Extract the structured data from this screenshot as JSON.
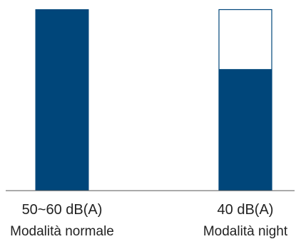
{
  "chart_data": {
    "type": "bar",
    "categories": [
      "Modalità normale",
      "Modalità night"
    ],
    "value_labels": [
      "50~60 dB(A)",
      "40 dB(A)"
    ],
    "series": [
      {
        "values": [
          1.0,
          0.67
        ]
      }
    ],
    "ylim": [
      0,
      1
    ],
    "grid": false,
    "legend": "none",
    "colors": {
      "bar_fill": "#00467a",
      "bar_outline": "#00467a",
      "empty_fill": "#ffffff",
      "axis": "#555555"
    }
  }
}
